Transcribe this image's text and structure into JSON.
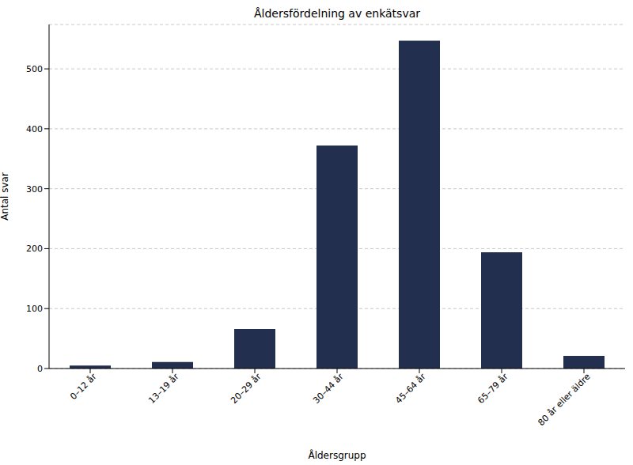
{
  "chart_data": {
    "type": "bar",
    "title": "Åldersfördelning av enkätsvar",
    "x_label": "Åldersgrupp",
    "y_label": "Antal svar",
    "categories": [
      "0–12 år",
      "13–19 år",
      "20–29 år",
      "30–44 år",
      "45–64 år",
      "65–79 år",
      "80 år eller äldre"
    ],
    "values": [
      5,
      11,
      66,
      372,
      547,
      194,
      21
    ],
    "color": "#232f4f",
    "ylim": [
      0,
      574
    ],
    "yticks": [
      0,
      100,
      200,
      300,
      400,
      500
    ],
    "grid": true
  }
}
